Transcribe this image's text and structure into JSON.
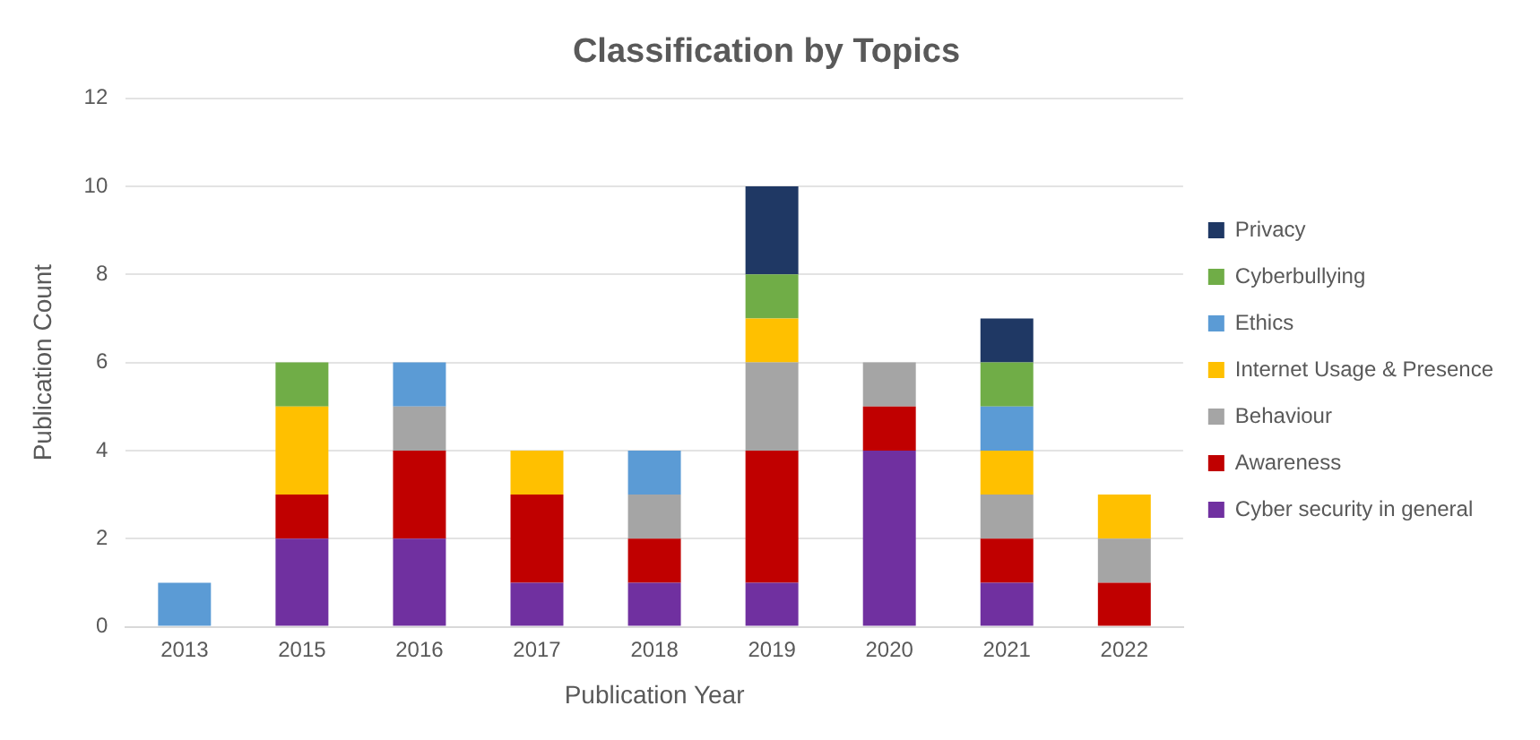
{
  "chart_data": {
    "type": "bar",
    "title": "Classification by Topics",
    "xlabel": "Publication Year",
    "ylabel": "Publication Count",
    "categories": [
      "2013",
      "2015",
      "2016",
      "2017",
      "2018",
      "2019",
      "2020",
      "2021",
      "2022"
    ],
    "stacked": true,
    "ylim": [
      0,
      12
    ],
    "yticks": [
      0,
      2,
      4,
      6,
      8,
      10,
      12
    ],
    "grid": "y",
    "legend": "right",
    "series": [
      {
        "name": "Cyber security in general",
        "color": "#7030a0",
        "values": [
          0,
          2,
          2,
          1,
          1,
          1,
          4,
          1,
          0
        ]
      },
      {
        "name": "Awareness",
        "color": "#c00000",
        "values": [
          0,
          1,
          2,
          2,
          1,
          3,
          1,
          1,
          1
        ]
      },
      {
        "name": "Behaviour",
        "color": "#a5a5a5",
        "values": [
          0,
          0,
          1,
          0,
          1,
          2,
          1,
          1,
          1
        ]
      },
      {
        "name": "Internet Usage & Presence",
        "color": "#ffc000",
        "values": [
          0,
          2,
          0,
          1,
          0,
          1,
          0,
          1,
          1
        ]
      },
      {
        "name": "Ethics",
        "color": "#5b9bd5",
        "values": [
          1,
          0,
          1,
          0,
          1,
          0,
          0,
          1,
          0
        ]
      },
      {
        "name": "Cyberbullying",
        "color": "#70ad47",
        "values": [
          0,
          1,
          0,
          0,
          0,
          1,
          0,
          1,
          0
        ]
      },
      {
        "name": "Privacy",
        "color": "#1f3864",
        "values": [
          0,
          0,
          0,
          0,
          0,
          2,
          0,
          1,
          0
        ]
      }
    ]
  }
}
